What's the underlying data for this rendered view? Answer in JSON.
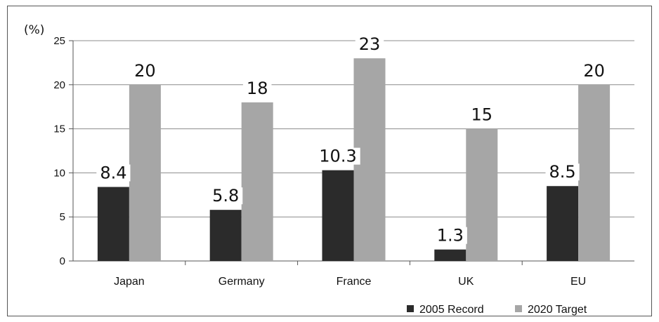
{
  "chart_data": {
    "type": "bar",
    "unit_label": "(%)",
    "categories": [
      "Japan",
      "Germany",
      "France",
      "UK",
      "EU"
    ],
    "series": [
      {
        "name": "2005 Record",
        "values": [
          8.4,
          5.8,
          10.3,
          1.3,
          8.5
        ],
        "color": "#2b2b2b"
      },
      {
        "name": "2020 Target",
        "values": [
          20,
          18,
          23,
          15,
          20
        ],
        "color": "#a6a6a6"
      }
    ],
    "data_labels": [
      [
        "8.4",
        "5.8",
        "10.3",
        "1.3",
        "8.5"
      ],
      [
        "20",
        "18",
        "23",
        "15",
        "20"
      ]
    ],
    "ylim": [
      0,
      25
    ],
    "yticks": [
      0,
      5,
      10,
      15,
      20,
      25
    ],
    "grid": true,
    "legend_position": "bottom-right"
  }
}
